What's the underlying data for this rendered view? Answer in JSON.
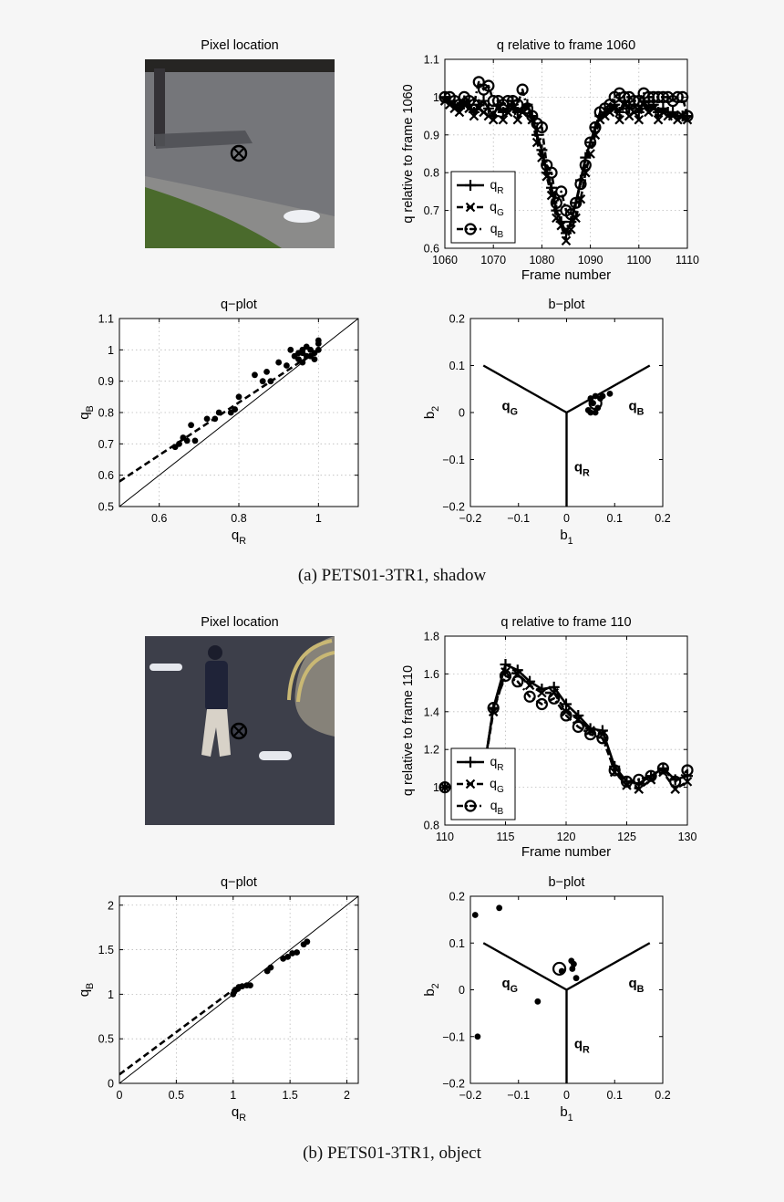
{
  "captions": {
    "a": "(a) PETS01-3TR1, shadow",
    "b": "(b) PETS01-3TR1, object"
  },
  "legend": {
    "labels": [
      "q_R",
      "q_G",
      "q_B"
    ]
  },
  "region_labels": {
    "qR": "q_R",
    "qG": "q_G",
    "qB": "q_B"
  },
  "colors": {
    "ink": "#000000",
    "grid": "#bbbbbb"
  },
  "chart_data": [
    {
      "id": "a_pixel",
      "type": "image",
      "title": "Pixel location",
      "scene": "road-shadow",
      "marker": "circle-cross-icon"
    },
    {
      "id": "a_q",
      "type": "line",
      "title": "q relative to frame 1060",
      "xlabel": "Frame number",
      "ylabel": "q relative to frame 1060",
      "xlim": [
        1060,
        1110
      ],
      "ylim": [
        0.6,
        1.1
      ],
      "xticks": [
        1060,
        1070,
        1080,
        1090,
        1100,
        1110
      ],
      "yticks": [
        0.6,
        0.7,
        0.8,
        0.9,
        1,
        1.1
      ],
      "grid": true,
      "legend": "bottom-left",
      "x": [
        1060,
        1061,
        1062,
        1063,
        1064,
        1065,
        1066,
        1067,
        1068,
        1069,
        1070,
        1071,
        1072,
        1073,
        1074,
        1075,
        1076,
        1077,
        1078,
        1079,
        1080,
        1081,
        1082,
        1083,
        1084,
        1085,
        1086,
        1087,
        1088,
        1089,
        1090,
        1091,
        1092,
        1093,
        1094,
        1095,
        1096,
        1097,
        1098,
        1099,
        1100,
        1101,
        1102,
        1103,
        1104,
        1105,
        1106,
        1107,
        1108,
        1109,
        1110
      ],
      "series": [
        {
          "name": "q_R",
          "marker": "plus",
          "dash": "solid",
          "values": [
            1.0,
            0.99,
            0.98,
            0.97,
            0.99,
            0.98,
            0.96,
            0.98,
            0.99,
            0.97,
            0.95,
            0.98,
            0.96,
            0.97,
            0.99,
            0.96,
            0.97,
            0.98,
            0.95,
            0.9,
            0.86,
            0.8,
            0.76,
            0.7,
            0.67,
            0.64,
            0.67,
            0.72,
            0.78,
            0.84,
            0.88,
            0.92,
            0.95,
            0.96,
            0.97,
            0.98,
            0.96,
            0.99,
            0.97,
            0.98,
            0.96,
            0.99,
            0.97,
            0.98,
            0.96,
            0.97,
            0.96,
            0.96,
            0.95,
            0.95,
            0.95
          ]
        },
        {
          "name": "q_G",
          "marker": "x",
          "dash": "dashed",
          "values": [
            0.99,
            0.98,
            0.97,
            0.96,
            0.98,
            0.97,
            0.95,
            0.97,
            0.96,
            0.95,
            0.94,
            0.97,
            0.94,
            0.96,
            0.97,
            0.94,
            0.96,
            0.97,
            0.94,
            0.88,
            0.84,
            0.79,
            0.74,
            0.68,
            0.66,
            0.62,
            0.65,
            0.68,
            0.73,
            0.8,
            0.85,
            0.9,
            0.94,
            0.95,
            0.96,
            0.97,
            0.94,
            0.98,
            0.95,
            0.96,
            0.94,
            0.98,
            0.96,
            0.97,
            0.94,
            0.96,
            0.95,
            0.95,
            0.94,
            0.95,
            0.94
          ]
        },
        {
          "name": "q_B",
          "marker": "circle",
          "dash": "dashdot",
          "values": [
            1.0,
            1.0,
            0.99,
            0.98,
            1.0,
            0.99,
            0.98,
            1.04,
            1.02,
            1.03,
            0.99,
            0.99,
            0.98,
            0.99,
            0.99,
            0.98,
            1.02,
            0.97,
            0.95,
            0.93,
            0.92,
            0.82,
            0.8,
            0.72,
            0.75,
            0.7,
            0.69,
            0.72,
            0.77,
            0.82,
            0.88,
            0.92,
            0.96,
            0.97,
            0.98,
            1.0,
            1.01,
            1.0,
            1.0,
            0.99,
            0.99,
            1.01,
            1.0,
            1.0,
            1.0,
            1.0,
            1.0,
            0.99,
            1.0,
            1.0,
            0.95
          ]
        }
      ]
    },
    {
      "id": "a_qplot",
      "type": "scatter",
      "title": "q−plot",
      "xlabel": "q_R",
      "ylabel": "q_B",
      "xlim": [
        0.5,
        1.1
      ],
      "ylim": [
        0.5,
        1.1
      ],
      "xticks": [
        0.6,
        0.8,
        1
      ],
      "yticks": [
        0.5,
        0.6,
        0.7,
        0.8,
        0.9,
        1,
        1.1
      ],
      "grid": true,
      "identity_line": true,
      "fit_line": [
        [
          0.5,
          0.58
        ],
        [
          1.0,
          1.0
        ]
      ],
      "points": [
        [
          0.64,
          0.69
        ],
        [
          0.65,
          0.7
        ],
        [
          0.66,
          0.72
        ],
        [
          0.67,
          0.71
        ],
        [
          0.68,
          0.76
        ],
        [
          0.69,
          0.71
        ],
        [
          0.72,
          0.78
        ],
        [
          0.74,
          0.78
        ],
        [
          0.75,
          0.8
        ],
        [
          0.78,
          0.8
        ],
        [
          0.79,
          0.81
        ],
        [
          0.8,
          0.85
        ],
        [
          0.84,
          0.92
        ],
        [
          0.86,
          0.9
        ],
        [
          0.87,
          0.93
        ],
        [
          0.88,
          0.9
        ],
        [
          0.9,
          0.96
        ],
        [
          0.92,
          0.95
        ],
        [
          0.93,
          1.0
        ],
        [
          0.94,
          0.98
        ],
        [
          0.95,
          0.99
        ],
        [
          0.95,
          0.97
        ],
        [
          0.96,
          1.0
        ],
        [
          0.96,
          0.99
        ],
        [
          0.97,
          1.01
        ],
        [
          0.97,
          0.98
        ],
        [
          0.98,
          0.98
        ],
        [
          0.98,
          1.0
        ],
        [
          0.99,
          0.99
        ],
        [
          1.0,
          1.02
        ],
        [
          1.0,
          1.0
        ],
        [
          1.0,
          1.03
        ],
        [
          0.99,
          0.97
        ],
        [
          0.96,
          0.96
        ]
      ]
    },
    {
      "id": "a_bplot",
      "type": "scatter",
      "title": "b−plot",
      "xlabel": "b_1",
      "ylabel": "b_2",
      "xlim": [
        -0.2,
        0.2
      ],
      "ylim": [
        -0.2,
        0.2
      ],
      "xticks": [
        -0.2,
        -0.1,
        0,
        0.1,
        0.2
      ],
      "yticks": [
        -0.2,
        -0.1,
        0,
        0.1,
        0.2
      ],
      "grid": false,
      "points": [
        [
          0.05,
          0.03
        ],
        [
          0.06,
          0.035
        ],
        [
          0.055,
          0.02
        ],
        [
          0.07,
          0.03
        ],
        [
          0.065,
          0.01
        ],
        [
          0.05,
          0.0
        ],
        [
          0.06,
          0.0
        ],
        [
          0.045,
          0.005
        ],
        [
          0.09,
          0.04
        ],
        [
          0.075,
          0.035
        ]
      ],
      "circle_point": [
        0.06,
        0.02
      ]
    },
    {
      "id": "b_pixel",
      "type": "image",
      "title": "Pixel location",
      "scene": "road-person",
      "marker": "circle-cross-icon"
    },
    {
      "id": "b_q",
      "type": "line",
      "title": "q relative to frame 110",
      "xlabel": "Frame number",
      "ylabel": "q relative to frame 110",
      "xlim": [
        110,
        130
      ],
      "ylim": [
        0.8,
        1.8
      ],
      "xticks": [
        110,
        115,
        120,
        125,
        130
      ],
      "yticks": [
        0.8,
        1,
        1.2,
        1.4,
        1.6,
        1.8
      ],
      "grid": true,
      "legend": "bottom-left",
      "x": [
        110,
        111,
        112,
        113,
        114,
        115,
        116,
        117,
        118,
        119,
        120,
        121,
        122,
        123,
        124,
        125,
        126,
        127,
        128,
        129,
        130
      ],
      "series": [
        {
          "name": "q_R",
          "marker": "plus",
          "dash": "solid",
          "values": [
            1.0,
            1.0,
            1.0,
            1.0,
            1.42,
            1.65,
            1.62,
            1.56,
            1.52,
            1.53,
            1.44,
            1.38,
            1.31,
            1.3,
            1.11,
            1.03,
            1.02,
            1.06,
            1.1,
            1.04,
            1.06
          ]
        },
        {
          "name": "q_G",
          "marker": "x",
          "dash": "dashed",
          "values": [
            1.0,
            1.0,
            1.0,
            1.0,
            1.4,
            1.61,
            1.6,
            1.54,
            1.5,
            1.5,
            1.4,
            1.36,
            1.3,
            1.28,
            1.08,
            1.01,
            0.99,
            1.04,
            1.08,
            0.99,
            1.03
          ]
        },
        {
          "name": "q_B",
          "marker": "circle",
          "dash": "dashdot",
          "values": [
            1.0,
            1.0,
            1.0,
            1.0,
            1.42,
            1.59,
            1.56,
            1.48,
            1.44,
            1.47,
            1.38,
            1.32,
            1.28,
            1.26,
            1.09,
            1.03,
            1.04,
            1.06,
            1.1,
            1.03,
            1.09
          ]
        }
      ]
    },
    {
      "id": "b_qplot",
      "type": "scatter",
      "title": "q−plot",
      "xlabel": "q_R",
      "ylabel": "q_B",
      "xlim": [
        0,
        2.1
      ],
      "ylim": [
        0,
        2.1
      ],
      "xticks": [
        0,
        0.5,
        1,
        1.5,
        2
      ],
      "yticks": [
        0,
        0.5,
        1,
        1.5,
        2
      ],
      "xtick_labels": [
        "0",
        "0.5",
        "1",
        "1.5",
        "2"
      ],
      "ytick_labels": [
        "0",
        "0.5",
        "1",
        "1.5",
        "2"
      ],
      "grid": true,
      "identity_line": true,
      "fit_line": [
        [
          0.0,
          0.1
        ],
        [
          1.0,
          1.05
        ]
      ],
      "points": [
        [
          1.0,
          1.0
        ],
        [
          1.02,
          1.05
        ],
        [
          1.05,
          1.08
        ],
        [
          1.08,
          1.09
        ],
        [
          1.12,
          1.1
        ],
        [
          1.15,
          1.1
        ],
        [
          1.3,
          1.26
        ],
        [
          1.33,
          1.3
        ],
        [
          1.44,
          1.4
        ],
        [
          1.48,
          1.42
        ],
        [
          1.52,
          1.46
        ],
        [
          1.56,
          1.47
        ],
        [
          1.62,
          1.56
        ],
        [
          1.65,
          1.59
        ],
        [
          1.01,
          1.03
        ],
        [
          1.04,
          1.06
        ]
      ]
    },
    {
      "id": "b_bplot",
      "type": "scatter",
      "title": "b−plot",
      "xlabel": "b_1",
      "ylabel": "b_2",
      "xlim": [
        -0.2,
        0.2
      ],
      "ylim": [
        -0.2,
        0.2
      ],
      "xticks": [
        -0.2,
        -0.1,
        0,
        0.1,
        0.2
      ],
      "yticks": [
        -0.2,
        -0.1,
        0,
        0.1,
        0.2
      ],
      "grid": false,
      "points": [
        [
          -0.19,
          0.16
        ],
        [
          -0.14,
          0.175
        ],
        [
          -0.185,
          -0.1
        ],
        [
          -0.06,
          -0.025
        ],
        [
          0.01,
          0.062
        ],
        [
          0.015,
          0.055
        ],
        [
          0.02,
          0.025
        ],
        [
          -0.01,
          0.04
        ],
        [
          0.012,
          0.045
        ]
      ],
      "circle_point": [
        -0.015,
        0.045
      ]
    }
  ]
}
